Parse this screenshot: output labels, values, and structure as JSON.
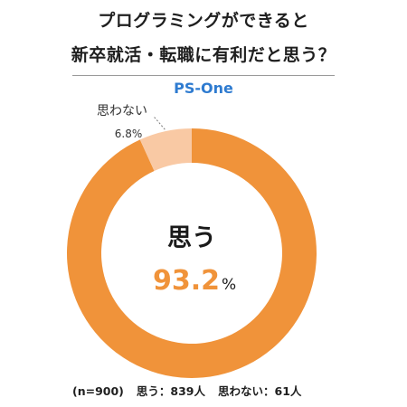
{
  "title_line1": "プログラミングができると",
  "title_line2": "新卒就活・転職に有利だと思う？",
  "brand": "PS-One",
  "colors": {
    "main": "#f0933a",
    "minor": "#f9c9a4",
    "brand": "#2e7bd0"
  },
  "chart_data": {
    "type": "pie",
    "style": "donut",
    "slices": [
      {
        "label": "思う",
        "value": 93.2,
        "display_value": "93.2",
        "unit": "%"
      },
      {
        "label": "思わない",
        "value": 6.8,
        "display_value": "6.8",
        "unit": "%"
      }
    ]
  },
  "footer": {
    "n": "(n=900)",
    "yes_count": "思う：839人",
    "no_count": "思わない：61人"
  }
}
